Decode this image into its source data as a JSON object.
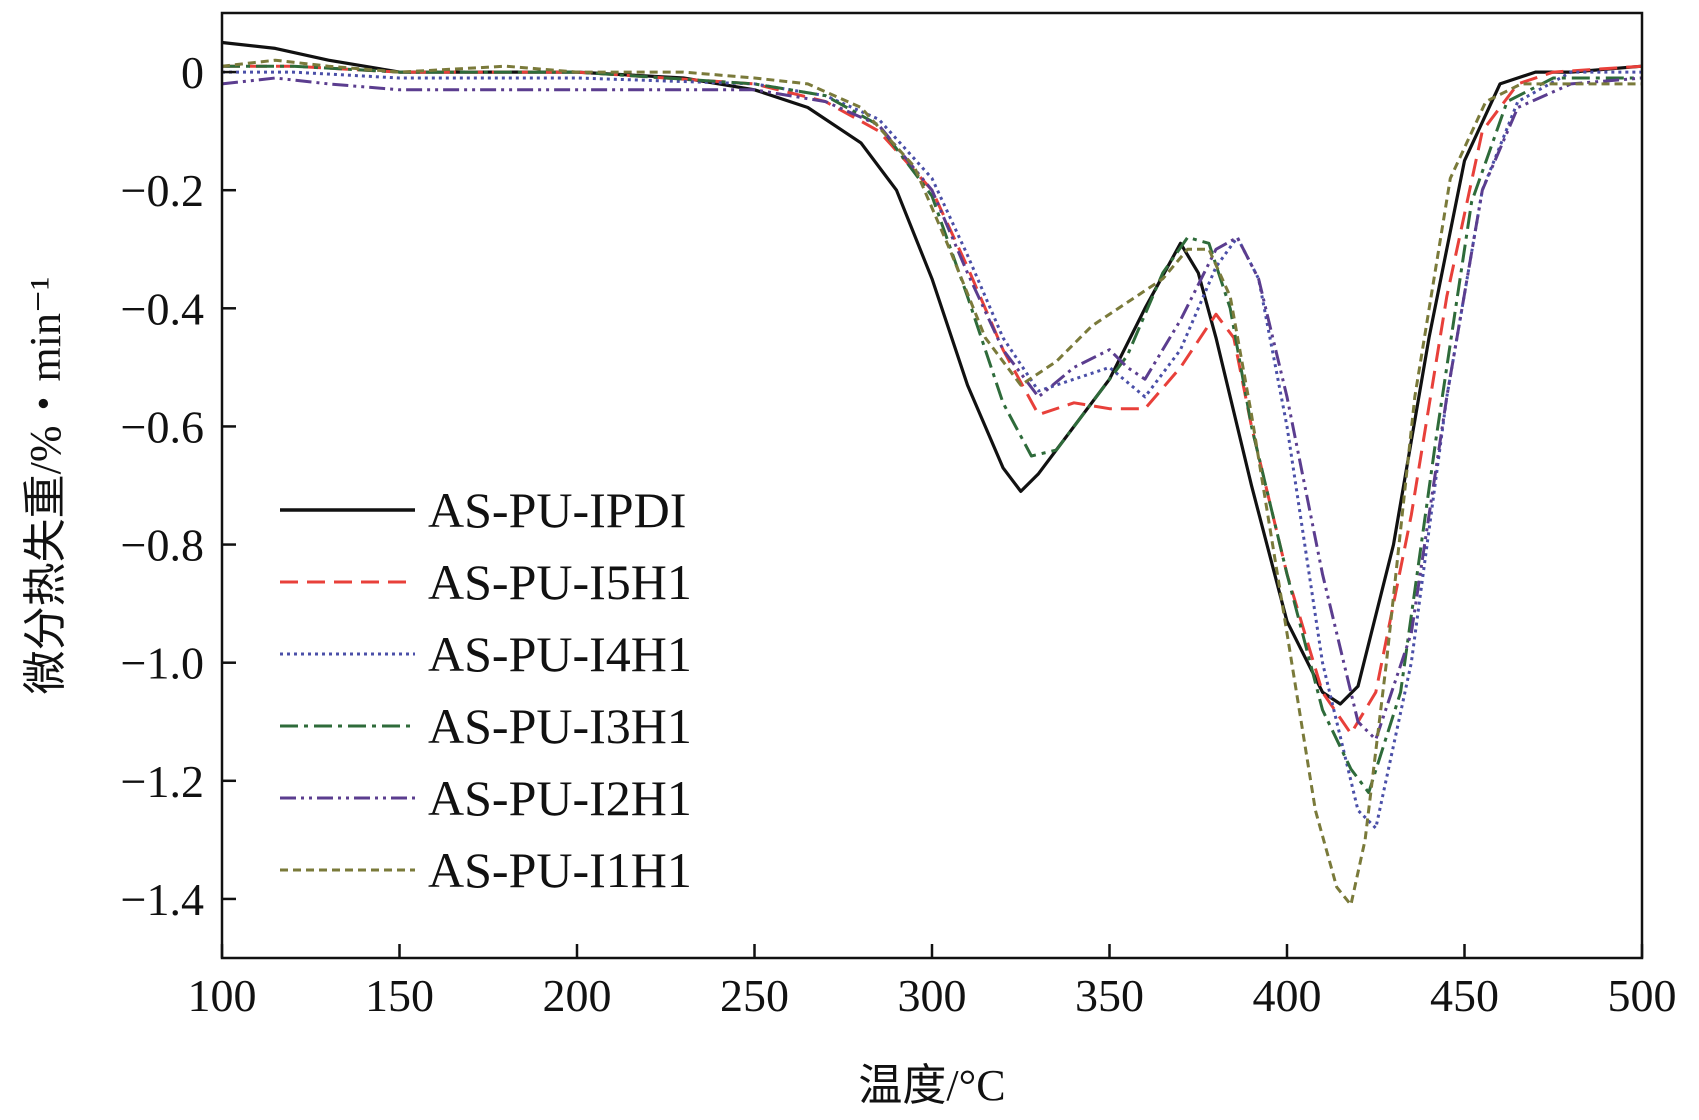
{
  "chart_data": {
    "type": "line",
    "title": "",
    "xlabel": "温度/°C",
    "ylabel": "微分热失重/%・min⁻¹",
    "xlim": [
      100,
      500
    ],
    "ylim": [
      -1.5,
      0.1
    ],
    "xticks": [
      100,
      150,
      200,
      250,
      300,
      350,
      400,
      450,
      500
    ],
    "yticks": [
      0,
      -0.2,
      -0.4,
      -0.6,
      -0.8,
      -1.0,
      -1.2,
      -1.4
    ],
    "ytick_labels": [
      "0",
      "−0.2",
      "−0.4",
      "−0.6",
      "−0.8",
      "−1.0",
      "−1.2",
      "−1.4"
    ],
    "grid": false,
    "legend_position": "middle-left",
    "series": [
      {
        "name": "AS-PU-IPDI",
        "color": "#111111",
        "dash": "solid",
        "x": [
          100,
          115,
          130,
          150,
          180,
          200,
          230,
          250,
          265,
          280,
          290,
          300,
          310,
          320,
          325,
          330,
          340,
          350,
          360,
          370,
          375,
          380,
          390,
          400,
          410,
          415,
          420,
          430,
          440,
          450,
          460,
          470,
          480,
          500
        ],
        "y": [
          0.05,
          0.04,
          0.02,
          0.0,
          0.0,
          0.0,
          -0.01,
          -0.03,
          -0.06,
          -0.12,
          -0.2,
          -0.35,
          -0.53,
          -0.67,
          -0.71,
          -0.68,
          -0.6,
          -0.52,
          -0.4,
          -0.29,
          -0.34,
          -0.45,
          -0.7,
          -0.93,
          -1.05,
          -1.07,
          -1.04,
          -0.8,
          -0.45,
          -0.15,
          -0.02,
          0.0,
          0.0,
          0.01
        ]
      },
      {
        "name": "AS-PU-I5H1",
        "color": "#e8403a",
        "dash": "dashed",
        "x": [
          100,
          120,
          150,
          200,
          250,
          270,
          285,
          300,
          310,
          320,
          330,
          340,
          350,
          360,
          370,
          380,
          385,
          390,
          400,
          410,
          418,
          425,
          435,
          445,
          455,
          465,
          475,
          500
        ],
        "y": [
          0.01,
          0.01,
          0.0,
          0.0,
          -0.02,
          -0.05,
          -0.1,
          -0.2,
          -0.33,
          -0.47,
          -0.58,
          -0.56,
          -0.57,
          -0.57,
          -0.5,
          -0.41,
          -0.45,
          -0.6,
          -0.85,
          -1.05,
          -1.12,
          -1.05,
          -0.75,
          -0.38,
          -0.1,
          -0.02,
          0.0,
          0.01
        ]
      },
      {
        "name": "AS-PU-I4H1",
        "color": "#4a4fa8",
        "dash": "dotted",
        "x": [
          100,
          120,
          150,
          200,
          250,
          270,
          285,
          300,
          310,
          320,
          330,
          340,
          350,
          360,
          370,
          380,
          386,
          392,
          400,
          410,
          420,
          425,
          435,
          445,
          455,
          465,
          480,
          500
        ],
        "y": [
          0.0,
          0.0,
          -0.01,
          -0.01,
          -0.02,
          -0.04,
          -0.08,
          -0.18,
          -0.31,
          -0.45,
          -0.54,
          -0.52,
          -0.5,
          -0.55,
          -0.47,
          -0.33,
          -0.28,
          -0.35,
          -0.6,
          -1.0,
          -1.25,
          -1.28,
          -1.0,
          -0.55,
          -0.2,
          -0.05,
          0.0,
          0.0
        ]
      },
      {
        "name": "AS-PU-I3H1",
        "color": "#2e6b3a",
        "dash": "dashdot",
        "x": [
          100,
          120,
          150,
          200,
          250,
          270,
          285,
          300,
          310,
          320,
          328,
          335,
          345,
          355,
          365,
          372,
          378,
          384,
          390,
          400,
          410,
          418,
          423,
          432,
          442,
          452,
          462,
          475,
          500
        ],
        "y": [
          0.01,
          0.01,
          0.0,
          0.0,
          -0.02,
          -0.04,
          -0.09,
          -0.21,
          -0.38,
          -0.56,
          -0.65,
          -0.64,
          -0.56,
          -0.48,
          -0.34,
          -0.28,
          -0.29,
          -0.4,
          -0.6,
          -0.85,
          -1.08,
          -1.18,
          -1.22,
          -1.05,
          -0.62,
          -0.22,
          -0.05,
          -0.01,
          -0.01
        ]
      },
      {
        "name": "AS-PU-I2H1",
        "color": "#5b3d8f",
        "dash": "dashdotdot",
        "x": [
          100,
          115,
          130,
          150,
          200,
          250,
          270,
          285,
          300,
          310,
          320,
          330,
          340,
          350,
          355,
          360,
          370,
          380,
          386,
          392,
          400,
          410,
          420,
          425,
          435,
          445,
          455,
          465,
          480,
          500
        ],
        "y": [
          -0.02,
          -0.01,
          -0.02,
          -0.03,
          -0.03,
          -0.03,
          -0.05,
          -0.09,
          -0.2,
          -0.34,
          -0.47,
          -0.55,
          -0.5,
          -0.47,
          -0.5,
          -0.52,
          -0.42,
          -0.3,
          -0.28,
          -0.35,
          -0.55,
          -0.85,
          -1.1,
          -1.13,
          -0.95,
          -0.55,
          -0.2,
          -0.06,
          -0.02,
          -0.01
        ]
      },
      {
        "name": "AS-PU-I1H1",
        "color": "#7a7a3a",
        "dash": "shortdash",
        "x": [
          100,
          115,
          130,
          150,
          180,
          200,
          230,
          250,
          265,
          280,
          295,
          305,
          315,
          325,
          335,
          345,
          355,
          365,
          372,
          378,
          384,
          390,
          400,
          408,
          414,
          418,
          422,
          428,
          436,
          446,
          456,
          466,
          480,
          500
        ],
        "y": [
          0.01,
          0.02,
          0.01,
          0.0,
          0.01,
          0.0,
          0.0,
          -0.01,
          -0.02,
          -0.06,
          -0.16,
          -0.3,
          -0.45,
          -0.53,
          -0.49,
          -0.43,
          -0.39,
          -0.35,
          -0.3,
          -0.3,
          -0.38,
          -0.58,
          -0.95,
          -1.25,
          -1.38,
          -1.41,
          -1.3,
          -1.0,
          -0.55,
          -0.18,
          -0.05,
          -0.02,
          -0.02,
          -0.02
        ]
      }
    ]
  }
}
